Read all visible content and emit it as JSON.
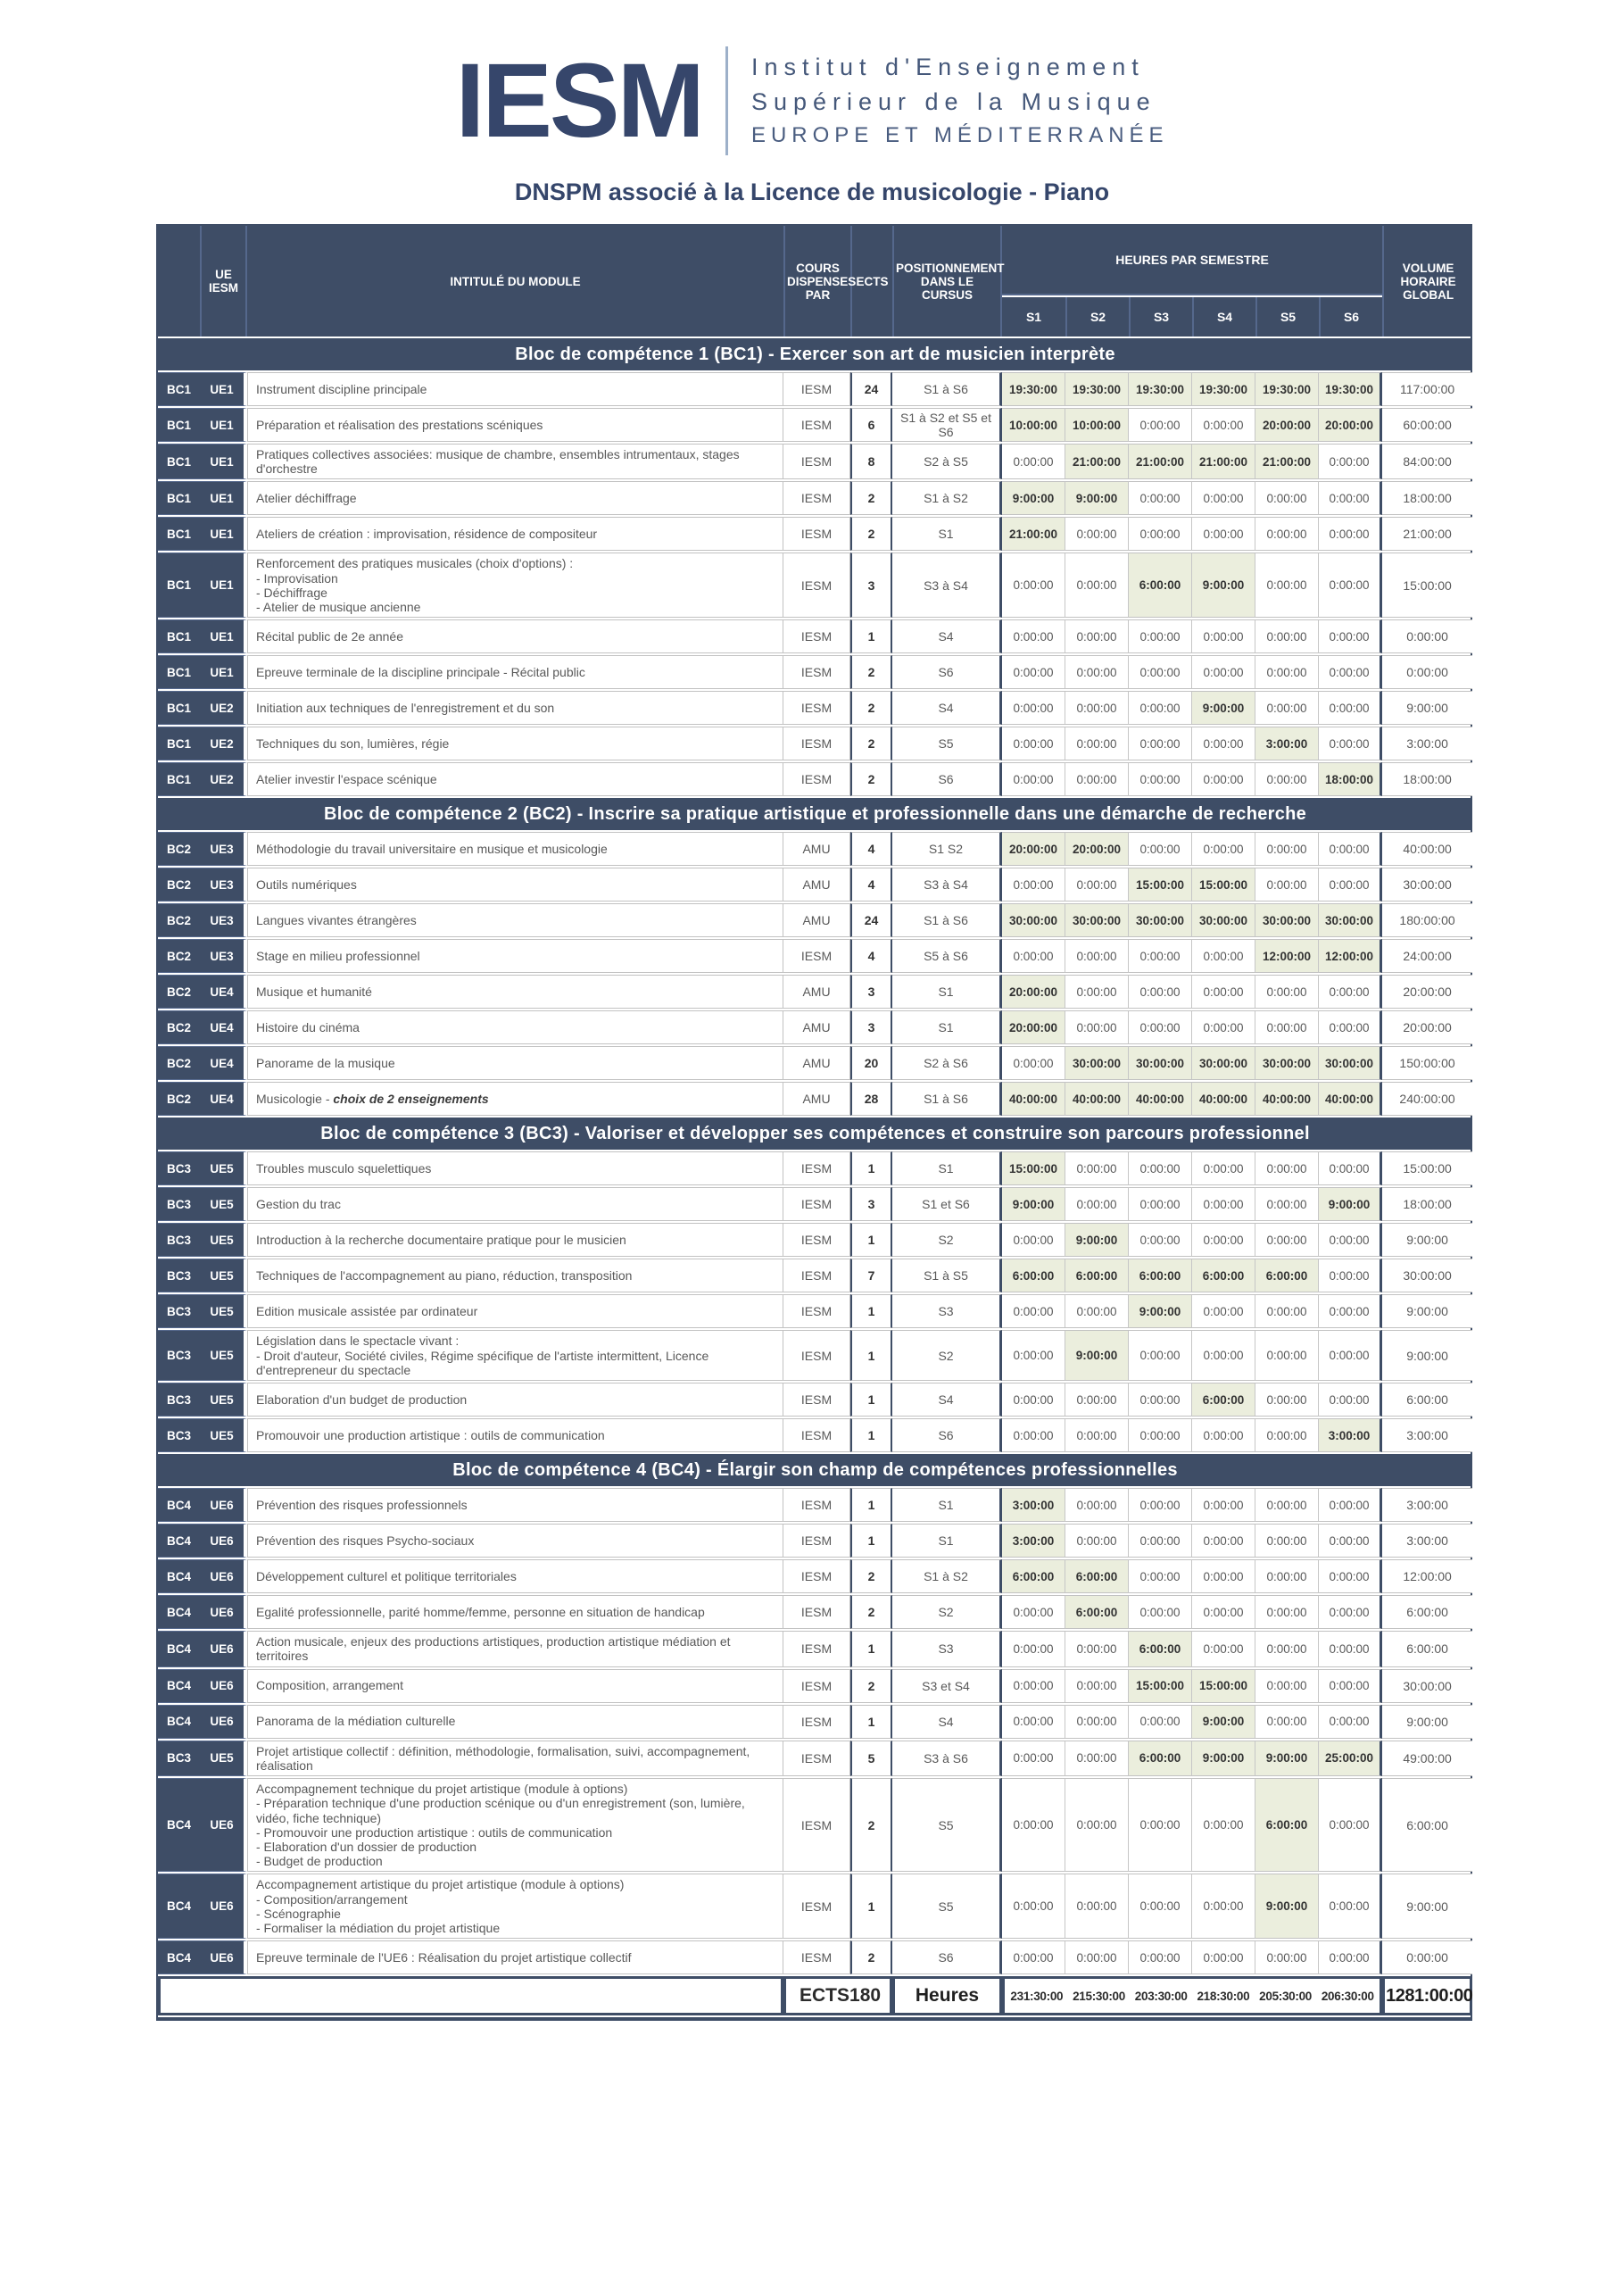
{
  "logo": {
    "mark": "IESM",
    "line1": "Institut d'Enseignement",
    "line2": "Supérieur de la Musique",
    "line3": "EUROPE ET MÉDITERRANÉE"
  },
  "title": "DNSPM associé à la Licence de musicologie - Piano",
  "colors": {
    "navy": "#3e4d66",
    "title_navy": "#35466b",
    "highlight_green": "#ebeedd",
    "grid_gray": "#c2c2c2",
    "body_text": "#595959",
    "value_text": "#303030"
  },
  "table": {
    "headers": {
      "ue_iesm": "UE\nIESM",
      "module": "INTITULÉ DU MODULE",
      "cours": "COURS\nDISPENSES\nPAR",
      "ects": "ECTS",
      "positionnement": "POSITIONNEMENT\nDANS LE CURSUS",
      "heures": "HEURES PAR SEMESTRE",
      "volume": "VOLUME\nHORAIRE\nGLOBAL",
      "semesters": [
        "S1",
        "S2",
        "S3",
        "S4",
        "S5",
        "S6"
      ]
    },
    "sections": [
      {
        "title": "Bloc de compétence 1 (BC1) - Exercer son art de musicien interprète",
        "rows": [
          {
            "bc": "BC1",
            "ue": "UE1",
            "module": "Instrument discipline principale",
            "cours": "IESM",
            "ects": "24",
            "pos": "S1 à S6",
            "hours": [
              "19:30:00",
              "19:30:00",
              "19:30:00",
              "19:30:00",
              "19:30:00",
              "19:30:00"
            ],
            "volume": "117:00:00"
          },
          {
            "bc": "BC1",
            "ue": "UE1",
            "module": "Préparation et réalisation des prestations scéniques",
            "cours": "IESM",
            "ects": "6",
            "pos": "S1 à S2 et S5 et S6",
            "hours": [
              "10:00:00",
              "10:00:00",
              "0:00:00",
              "0:00:00",
              "20:00:00",
              "20:00:00"
            ],
            "volume": "60:00:00"
          },
          {
            "bc": "BC1",
            "ue": "UE1",
            "module": "Pratiques collectives associées: musique de chambre, ensembles intrumentaux, stages d'orchestre",
            "cours": "IESM",
            "ects": "8",
            "pos": "S2 à S5",
            "hours": [
              "0:00:00",
              "21:00:00",
              "21:00:00",
              "21:00:00",
              "21:00:00",
              "0:00:00"
            ],
            "volume": "84:00:00"
          },
          {
            "bc": "BC1",
            "ue": "UE1",
            "module": "Atelier déchiffrage",
            "cours": "IESM",
            "ects": "2",
            "pos": "S1 à S2",
            "hours": [
              "9:00:00",
              "9:00:00",
              "0:00:00",
              "0:00:00",
              "0:00:00",
              "0:00:00"
            ],
            "volume": "18:00:00"
          },
          {
            "bc": "BC1",
            "ue": "UE1",
            "module": "Ateliers de création : improvisation, résidence de compositeur",
            "cours": "IESM",
            "ects": "2",
            "pos": "S1",
            "hours": [
              "21:00:00",
              "0:00:00",
              "0:00:00",
              "0:00:00",
              "0:00:00",
              "0:00:00"
            ],
            "volume": "21:00:00"
          },
          {
            "bc": "BC1",
            "ue": "UE1",
            "module": [
              "Renforcement des pratiques musicales (choix d'options) :",
              "- Improvisation",
              "- Déchiffrage",
              "- Atelier de musique ancienne"
            ],
            "cours": "IESM",
            "ects": "3",
            "pos": "S3 à S4",
            "hours": [
              "0:00:00",
              "0:00:00",
              "6:00:00",
              "9:00:00",
              "0:00:00",
              "0:00:00"
            ],
            "volume": "15:00:00"
          },
          {
            "bc": "BC1",
            "ue": "UE1",
            "module": "Récital public de 2e année",
            "cours": "IESM",
            "ects": "1",
            "pos": "S4",
            "hours": [
              "0:00:00",
              "0:00:00",
              "0:00:00",
              "0:00:00",
              "0:00:00",
              "0:00:00"
            ],
            "volume": "0:00:00"
          },
          {
            "bc": "BC1",
            "ue": "UE1",
            "module": "Epreuve terminale de la discipline principale - Récital public",
            "cours": "IESM",
            "ects": "2",
            "pos": "S6",
            "hours": [
              "0:00:00",
              "0:00:00",
              "0:00:00",
              "0:00:00",
              "0:00:00",
              "0:00:00"
            ],
            "volume": "0:00:00"
          },
          {
            "bc": "BC1",
            "ue": "UE2",
            "module": "Initiation aux techniques de l'enregistrement et du son",
            "cours": "IESM",
            "ects": "2",
            "pos": "S4",
            "hours": [
              "0:00:00",
              "0:00:00",
              "0:00:00",
              "9:00:00",
              "0:00:00",
              "0:00:00"
            ],
            "volume": "9:00:00"
          },
          {
            "bc": "BC1",
            "ue": "UE2",
            "module": "Techniques du son, lumières, régie",
            "cours": "IESM",
            "ects": "2",
            "pos": "S5",
            "hours": [
              "0:00:00",
              "0:00:00",
              "0:00:00",
              "0:00:00",
              "3:00:00",
              "0:00:00"
            ],
            "volume": "3:00:00"
          },
          {
            "bc": "BC1",
            "ue": "UE2",
            "module": "Atelier investir l'espace scénique",
            "cours": "IESM",
            "ects": "2",
            "pos": "S6",
            "hours": [
              "0:00:00",
              "0:00:00",
              "0:00:00",
              "0:00:00",
              "0:00:00",
              "18:00:00"
            ],
            "volume": "18:00:00"
          }
        ]
      },
      {
        "title": "Bloc de compétence 2 (BC2) - Inscrire sa pratique artistique et professionnelle dans une démarche de recherche",
        "rows": [
          {
            "bc": "BC2",
            "ue": "UE3",
            "module": "Méthodologie du travail universitaire en musique et musicologie",
            "cours": "AMU",
            "ects": "4",
            "pos": "S1 S2",
            "hours": [
              "20:00:00",
              "20:00:00",
              "0:00:00",
              "0:00:00",
              "0:00:00",
              "0:00:00"
            ],
            "volume": "40:00:00"
          },
          {
            "bc": "BC2",
            "ue": "UE3",
            "module": "Outils numériques",
            "cours": "AMU",
            "ects": "4",
            "pos": "S3 à S4",
            "hours": [
              "0:00:00",
              "0:00:00",
              "15:00:00",
              "15:00:00",
              "0:00:00",
              "0:00:00"
            ],
            "volume": "30:00:00"
          },
          {
            "bc": "BC2",
            "ue": "UE3",
            "module": "Langues vivantes étrangères",
            "cours": "AMU",
            "ects": "24",
            "pos": "S1 à S6",
            "hours": [
              "30:00:00",
              "30:00:00",
              "30:00:00",
              "30:00:00",
              "30:00:00",
              "30:00:00"
            ],
            "volume": "180:00:00"
          },
          {
            "bc": "BC2",
            "ue": "UE3",
            "module": "Stage en milieu professionnel",
            "cours": "IESM",
            "ects": "4",
            "pos": "S5 à S6",
            "hours": [
              "0:00:00",
              "0:00:00",
              "0:00:00",
              "0:00:00",
              "12:00:00",
              "12:00:00"
            ],
            "volume": "24:00:00"
          },
          {
            "bc": "BC2",
            "ue": "UE4",
            "module": "Musique et humanité",
            "cours": "AMU",
            "ects": "3",
            "pos": "S1",
            "hours": [
              "20:00:00",
              "0:00:00",
              "0:00:00",
              "0:00:00",
              "0:00:00",
              "0:00:00"
            ],
            "volume": "20:00:00"
          },
          {
            "bc": "BC2",
            "ue": "UE4",
            "module": "Histoire du cinéma",
            "cours": "AMU",
            "ects": "3",
            "pos": "S1",
            "hours": [
              "20:00:00",
              "0:00:00",
              "0:00:00",
              "0:00:00",
              "0:00:00",
              "0:00:00"
            ],
            "volume": "20:00:00"
          },
          {
            "bc": "BC2",
            "ue": "UE4",
            "module": "Panorame de la musique",
            "cours": "AMU",
            "ects": "20",
            "pos": "S2 à S6",
            "hours": [
              "0:00:00",
              "30:00:00",
              "30:00:00",
              "30:00:00",
              "30:00:00",
              "30:00:00"
            ],
            "volume": "150:00:00"
          },
          {
            "bc": "BC2",
            "ue": "UE4",
            "module": "Musicologie - ",
            "module_em": "choix de 2 enseignements",
            "cours": "AMU",
            "ects": "28",
            "pos": "S1 à S6",
            "hours": [
              "40:00:00",
              "40:00:00",
              "40:00:00",
              "40:00:00",
              "40:00:00",
              "40:00:00"
            ],
            "volume": "240:00:00"
          }
        ]
      },
      {
        "title": "Bloc de compétence 3 (BC3) - Valoriser et développer ses compétences et construire son parcours professionnel",
        "rows": [
          {
            "bc": "BC3",
            "ue": "UE5",
            "module": "Troubles musculo squelettiques",
            "cours": "IESM",
            "ects": "1",
            "pos": "S1",
            "hours": [
              "15:00:00",
              "0:00:00",
              "0:00:00",
              "0:00:00",
              "0:00:00",
              "0:00:00"
            ],
            "volume": "15:00:00"
          },
          {
            "bc": "BC3",
            "ue": "UE5",
            "module": "Gestion du trac",
            "cours": "IESM",
            "ects": "3",
            "pos": "S1 et S6",
            "hours": [
              "9:00:00",
              "0:00:00",
              "0:00:00",
              "0:00:00",
              "0:00:00",
              "9:00:00"
            ],
            "volume": "18:00:00"
          },
          {
            "bc": "BC3",
            "ue": "UE5",
            "module": "Introduction à la recherche documentaire pratique pour le musicien",
            "cours": "IESM",
            "ects": "1",
            "pos": "S2",
            "hours": [
              "0:00:00",
              "9:00:00",
              "0:00:00",
              "0:00:00",
              "0:00:00",
              "0:00:00"
            ],
            "volume": "9:00:00"
          },
          {
            "bc": "BC3",
            "ue": "UE5",
            "module": "Techniques de l'accompagnement au piano, réduction, transposition",
            "cours": "IESM",
            "ects": "7",
            "pos": "S1 à S5",
            "hours": [
              "6:00:00",
              "6:00:00",
              "6:00:00",
              "6:00:00",
              "6:00:00",
              "0:00:00"
            ],
            "volume": "30:00:00"
          },
          {
            "bc": "BC3",
            "ue": "UE5",
            "module": "Edition musicale assistée par ordinateur",
            "cours": "IESM",
            "ects": "1",
            "pos": "S3",
            "hours": [
              "0:00:00",
              "0:00:00",
              "9:00:00",
              "0:00:00",
              "0:00:00",
              "0:00:00"
            ],
            "volume": "9:00:00"
          },
          {
            "bc": "BC3",
            "ue": "UE5",
            "module": [
              "Législation dans le spectacle vivant :",
              "- Droit d'auteur, Société civiles, Régime spécifique de l'artiste intermittent, Licence d'entrepreneur du spectacle"
            ],
            "cours": "IESM",
            "ects": "1",
            "pos": "S2",
            "hours": [
              "0:00:00",
              "9:00:00",
              "0:00:00",
              "0:00:00",
              "0:00:00",
              "0:00:00"
            ],
            "volume": "9:00:00"
          },
          {
            "bc": "BC3",
            "ue": "UE5",
            "module": "Elaboration d'un budget de production",
            "cours": "IESM",
            "ects": "1",
            "pos": "S4",
            "hours": [
              "0:00:00",
              "0:00:00",
              "0:00:00",
              "6:00:00",
              "0:00:00",
              "0:00:00"
            ],
            "volume": "6:00:00"
          },
          {
            "bc": "BC3",
            "ue": "UE5",
            "module": "Promouvoir une production artistique : outils de communication",
            "cours": "IESM",
            "ects": "1",
            "pos": "S6",
            "hours": [
              "0:00:00",
              "0:00:00",
              "0:00:00",
              "0:00:00",
              "0:00:00",
              "3:00:00"
            ],
            "volume": "3:00:00"
          }
        ]
      },
      {
        "title": "Bloc de compétence 4 (BC4) - Élargir son champ de compétences professionnelles",
        "rows": [
          {
            "bc": "BC4",
            "ue": "UE6",
            "module": "Prévention des risques professionnels",
            "cours": "IESM",
            "ects": "1",
            "pos": "S1",
            "hours": [
              "3:00:00",
              "0:00:00",
              "0:00:00",
              "0:00:00",
              "0:00:00",
              "0:00:00"
            ],
            "volume": "3:00:00"
          },
          {
            "bc": "BC4",
            "ue": "UE6",
            "module": "Prévention des risques Psycho-sociaux",
            "cours": "IESM",
            "ects": "1",
            "pos": "S1",
            "hours": [
              "3:00:00",
              "0:00:00",
              "0:00:00",
              "0:00:00",
              "0:00:00",
              "0:00:00"
            ],
            "volume": "3:00:00"
          },
          {
            "bc": "BC4",
            "ue": "UE6",
            "module": "Développement culturel et politique territoriales",
            "cours": "IESM",
            "ects": "2",
            "pos": "S1 à S2",
            "hours": [
              "6:00:00",
              "6:00:00",
              "0:00:00",
              "0:00:00",
              "0:00:00",
              "0:00:00"
            ],
            "volume": "12:00:00"
          },
          {
            "bc": "BC4",
            "ue": "UE6",
            "module": "Egalité professionnelle, parité homme/femme, personne en situation de handicap",
            "cours": "IESM",
            "ects": "2",
            "pos": "S2",
            "hours": [
              "0:00:00",
              "6:00:00",
              "0:00:00",
              "0:00:00",
              "0:00:00",
              "0:00:00"
            ],
            "volume": "6:00:00"
          },
          {
            "bc": "BC4",
            "ue": "UE6",
            "module": "Action musicale, enjeux des productions artistiques, production artistique médiation et territoires",
            "cours": "IESM",
            "ects": "1",
            "pos": "S3",
            "hours": [
              "0:00:00",
              "0:00:00",
              "6:00:00",
              "0:00:00",
              "0:00:00",
              "0:00:00"
            ],
            "volume": "6:00:00"
          },
          {
            "bc": "BC4",
            "ue": "UE6",
            "module": "Composition, arrangement",
            "cours": "IESM",
            "ects": "2",
            "pos": "S3 et S4",
            "hours": [
              "0:00:00",
              "0:00:00",
              "15:00:00",
              "15:00:00",
              "0:00:00",
              "0:00:00"
            ],
            "volume": "30:00:00"
          },
          {
            "bc": "BC4",
            "ue": "UE6",
            "module": "Panorama de la médiation culturelle",
            "cours": "IESM",
            "ects": "1",
            "pos": "S4",
            "hours": [
              "0:00:00",
              "0:00:00",
              "0:00:00",
              "9:00:00",
              "0:00:00",
              "0:00:00"
            ],
            "volume": "9:00:00"
          },
          {
            "bc": "BC3",
            "ue": "UE5",
            "module": "Projet artistique collectif : définition, méthodologie, formalisation, suivi, accompagnement, réalisation",
            "cours": "IESM",
            "ects": "5",
            "pos": "S3 à S6",
            "hours": [
              "0:00:00",
              "0:00:00",
              "6:00:00",
              "9:00:00",
              "9:00:00",
              "25:00:00"
            ],
            "volume": "49:00:00"
          },
          {
            "bc": "BC4",
            "ue": "UE6",
            "module": [
              "Accompagnement technique du projet artistique (module à options)",
              "- Préparation technique d'une production scénique ou d'un enregistrement (son, lumière, vidéo, fiche technique)",
              "- Promouvoir une production artistique : outils de communication",
              "- Elaboration d'un dossier de production",
              "- Budget de production"
            ],
            "cours": "IESM",
            "ects": "2",
            "pos": "S5",
            "hours": [
              "0:00:00",
              "0:00:00",
              "0:00:00",
              "0:00:00",
              "6:00:00",
              "0:00:00"
            ],
            "volume": "6:00:00"
          },
          {
            "bc": "BC4",
            "ue": "UE6",
            "module": [
              "Accompagnement artistique du projet artistique (module à options)",
              "- Composition/arrangement",
              "- Scénographie",
              "- Formaliser la médiation du projet artistique"
            ],
            "cours": "IESM",
            "ects": "1",
            "pos": "S5",
            "hours": [
              "0:00:00",
              "0:00:00",
              "0:00:00",
              "0:00:00",
              "9:00:00",
              "0:00:00"
            ],
            "volume": "9:00:00"
          },
          {
            "bc": "BC4",
            "ue": "UE6",
            "module": "Epreuve terminale de l'UE6 : Réalisation du projet artistique collectif",
            "cours": "IESM",
            "ects": "2",
            "pos": "S6",
            "hours": [
              "0:00:00",
              "0:00:00",
              "0:00:00",
              "0:00:00",
              "0:00:00",
              "0:00:00"
            ],
            "volume": "0:00:00"
          }
        ]
      }
    ],
    "totals": {
      "ects_label": "ECTS",
      "ects_value": "180",
      "heures_label": "Heures",
      "semester_totals": [
        "231:30:00",
        "215:30:00",
        "203:30:00",
        "218:30:00",
        "205:30:00",
        "206:30:00"
      ],
      "volume_total": "1281:00:00"
    }
  }
}
